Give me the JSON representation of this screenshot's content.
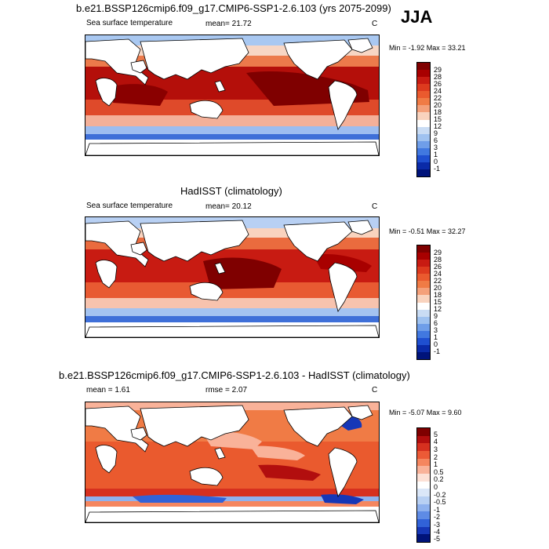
{
  "season": "JJA",
  "panels": [
    {
      "title": "b.e21.BSSP126cmip6.f09_g17.CMIP6-SSP1-2.6.103 (yrs 2075-2099)",
      "left_label": "Sea surface temperature",
      "center_label": "mean=  21.72",
      "unit": "C",
      "minmax": "Min =  -1.92 Max =  33.21",
      "colorbar": [
        "29",
        "28",
        "26",
        "24",
        "22",
        "20",
        "18",
        "15",
        "12",
        "9",
        "6",
        "3",
        "1",
        "0",
        "-1"
      ]
    },
    {
      "title": "HadISST (climatology)",
      "left_label": "Sea surface temperature",
      "center_label": "mean=  20.12",
      "unit": "C",
      "minmax": "Min =  -0.51 Max =  32.27",
      "colorbar": [
        "29",
        "28",
        "26",
        "24",
        "22",
        "20",
        "18",
        "15",
        "12",
        "9",
        "6",
        "3",
        "1",
        "0",
        "-1"
      ]
    },
    {
      "title": "b.e21.BSSP126cmip6.f09_g17.CMIP6-SSP1-2.6.103 - HadISST (climatology)",
      "left_label": "mean =   1.61",
      "center_label": "rmse =   2.07",
      "unit": "C",
      "minmax": "Min =  -5.07 Max =   9.60",
      "colorbar": [
        "5",
        "4",
        "3",
        "2",
        "1",
        "0.5",
        "0.2",
        "0",
        "-0.2",
        "-0.5",
        "-1",
        "-2",
        "-3",
        "-4",
        "-5"
      ]
    }
  ],
  "colors": {
    "sst_scale": [
      "#7f0000",
      "#a80000",
      "#c81b12",
      "#dd3a1e",
      "#ea5a2e",
      "#f07b45",
      "#f4a07a",
      "#f9d3be",
      "#ffffff",
      "#c9dcf4",
      "#9fc2f0",
      "#6f9ee9",
      "#4178e0",
      "#1f4fd0",
      "#0a2aa8",
      "#00137a"
    ],
    "diff_scale": [
      "#7f0000",
      "#b20e0e",
      "#d6301f",
      "#ec5a36",
      "#f5865f",
      "#f9b299",
      "#fde1d6",
      "#ffffff",
      "#dbe7f8",
      "#b8d0f3",
      "#8eb1ee",
      "#5e8be5",
      "#3162d8",
      "#1637b7",
      "#00137a"
    ]
  }
}
